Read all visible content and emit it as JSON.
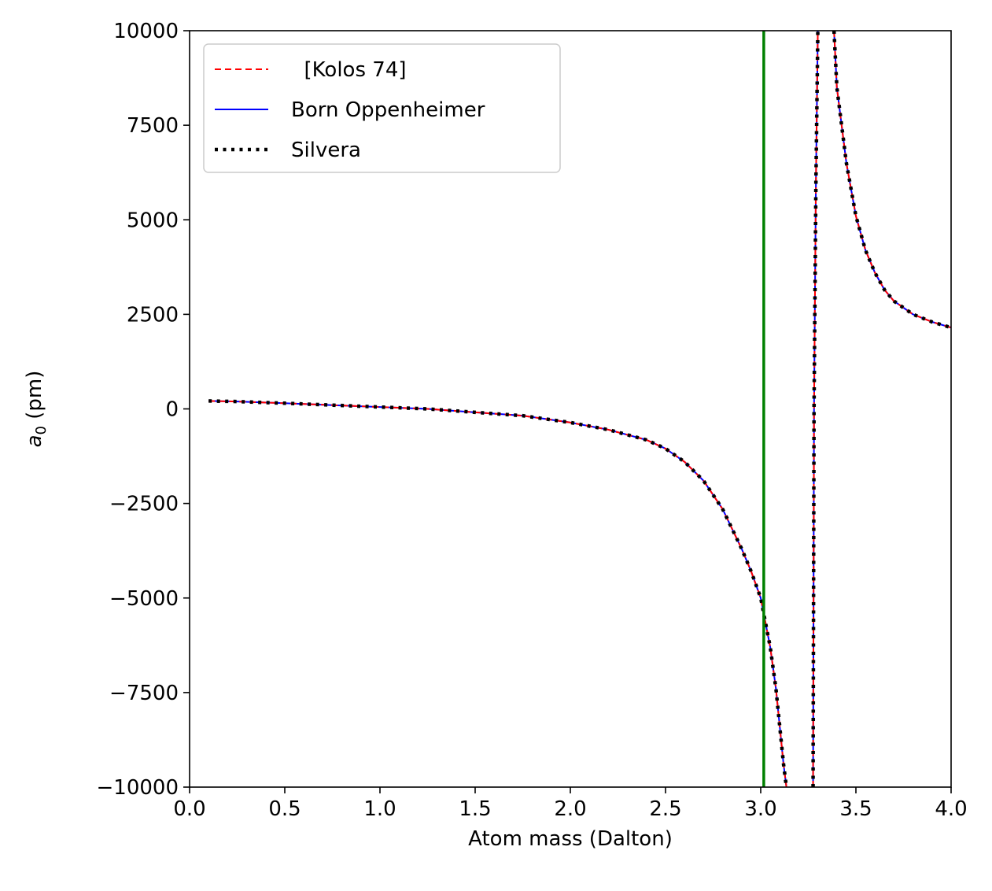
{
  "chart_data": {
    "type": "line",
    "xlabel": "Atom mass (Dalton)",
    "ylabel": {
      "symbol": "a",
      "subscript": "0",
      "unit": " (pm)"
    },
    "xlim": [
      0.0,
      4.0
    ],
    "ylim": [
      -10000,
      10000
    ],
    "x_ticks": [
      0.0,
      0.5,
      1.0,
      1.5,
      2.0,
      2.5,
      3.0,
      3.5,
      4.0
    ],
    "x_tick_labels": [
      "0.0",
      "0.5",
      "1.0",
      "1.5",
      "2.0",
      "2.5",
      "3.0",
      "3.5",
      "4.0"
    ],
    "y_ticks": [
      -10000,
      -7500,
      -5000,
      -2500,
      0,
      2500,
      5000,
      7500,
      10000
    ],
    "y_tick_labels": [
      "−10000",
      "−7500",
      "−5000",
      "−2500",
      "0",
      "2500",
      "5000",
      "7500",
      "10000"
    ],
    "grid": false,
    "legend_position": "top-left",
    "vertical_line": {
      "x": 3.016,
      "color": "#008000"
    },
    "series": [
      {
        "name": "  [Kolos 74]",
        "color": "#ff0000",
        "style": "dashed"
      },
      {
        "name": "Born Oppenheimer",
        "color": "#0000ff",
        "style": "solid"
      },
      {
        "name": "Silvera",
        "color": "#000000",
        "style": "dotted"
      }
    ],
    "branches": [
      {
        "x": [
          0.1,
          0.25,
          0.5,
          0.75,
          1.0,
          1.25,
          1.5,
          1.75,
          2.0,
          2.2,
          2.4,
          2.5,
          2.6,
          2.7,
          2.8,
          2.9,
          2.95,
          3.0,
          3.05,
          3.08,
          3.1,
          3.12,
          3.135
        ],
        "y": [
          210,
          195,
          150,
          100,
          50,
          0,
          -90,
          -180,
          -360,
          -550,
          -820,
          -1050,
          -1400,
          -1900,
          -2650,
          -3700,
          -4300,
          -5000,
          -6300,
          -7400,
          -8400,
          -9400,
          -10000
        ]
      },
      {
        "x": [
          3.275,
          3.28,
          3.29,
          3.3
        ],
        "y": [
          -10000,
          0,
          6000,
          10000
        ]
      },
      {
        "x": [
          3.385,
          3.4,
          3.45,
          3.5,
          3.55,
          3.6,
          3.65,
          3.7,
          3.8,
          3.9,
          4.0
        ],
        "y": [
          10000,
          8500,
          6500,
          5100,
          4200,
          3600,
          3150,
          2850,
          2500,
          2300,
          2150
        ]
      }
    ]
  }
}
